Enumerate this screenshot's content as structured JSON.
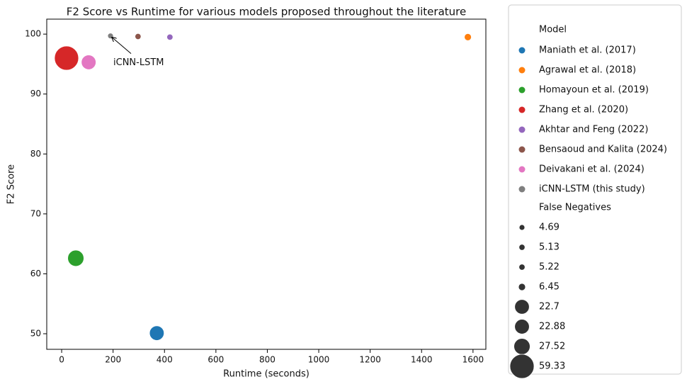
{
  "chart_data": {
    "type": "scatter",
    "title": "F2 Score vs Runtime for various models proposed throughout the literature",
    "x_label": "Runtime (seconds)",
    "y_label": "F2 Score",
    "xlim": [
      -58,
      1650
    ],
    "xticks": [
      0,
      200,
      400,
      600,
      800,
      1000,
      1200,
      1400,
      1600
    ],
    "ylim": [
      47.4,
      102.5
    ],
    "yticks": [
      50,
      60,
      70,
      80,
      90,
      100
    ],
    "legend_title": "Model",
    "series": [
      {
        "name": "Maniath et al. (2017)",
        "color": "#1f77b4",
        "x": [
          370
        ],
        "values": [
          50.1
        ],
        "sizes": [
          22.7
        ]
      },
      {
        "name": "Agrawal et al. (2018)",
        "color": "#ff7f0e",
        "x": [
          1580
        ],
        "values": [
          99.5
        ],
        "sizes": [
          6.45
        ]
      },
      {
        "name": "Homayoun et al. (2019)",
        "color": "#2ca02c",
        "x": [
          55
        ],
        "values": [
          62.6
        ],
        "sizes": [
          27.52
        ]
      },
      {
        "name": "Zhang et al. (2020)",
        "color": "#d62728",
        "x": [
          19
        ],
        "values": [
          96.0
        ],
        "sizes": [
          59.33
        ]
      },
      {
        "name": "Akhtar and Feng (2022)",
        "color": "#9467bd",
        "x": [
          421
        ],
        "values": [
          99.5
        ],
        "sizes": [
          5.22
        ]
      },
      {
        "name": "Bensaoud and Kalita (2024)",
        "color": "#8c564b",
        "x": [
          297
        ],
        "values": [
          99.6
        ],
        "sizes": [
          5.13
        ]
      },
      {
        "name": "Deivakani et al. (2024)",
        "color": "#e377c2",
        "x": [
          105
        ],
        "values": [
          95.3
        ],
        "sizes": [
          22.88
        ]
      },
      {
        "name": "iCNN-LSTM (this study)",
        "color": "#7f7f7f",
        "x": [
          190
        ],
        "values": [
          99.7
        ],
        "sizes": [
          4.69
        ]
      }
    ],
    "size_legend": {
      "title": "False Negatives",
      "color": "#333333",
      "values": [
        4.69,
        5.13,
        5.22,
        6.45,
        22.7,
        22.88,
        27.52,
        59.33
      ]
    },
    "annotations": [
      {
        "text": "iCNN-LSTM"
      }
    ]
  }
}
